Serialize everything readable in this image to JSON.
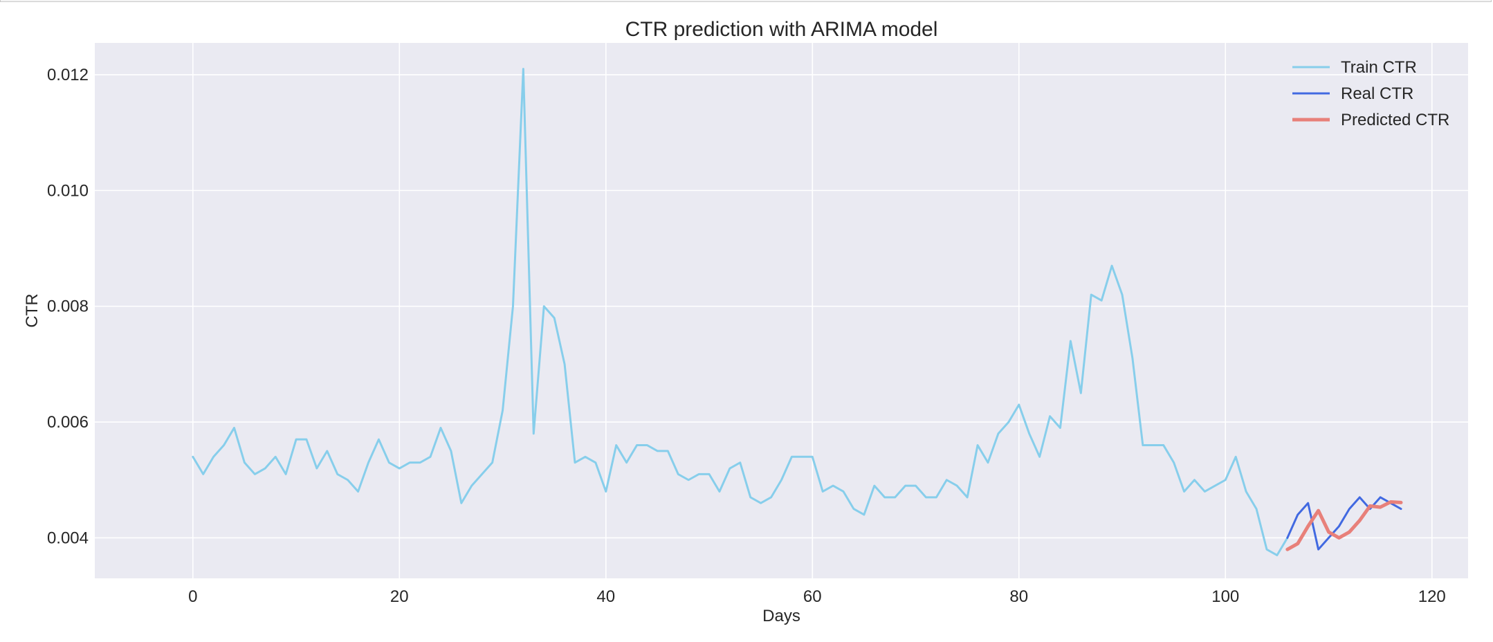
{
  "chart_data": {
    "type": "line",
    "title": "CTR prediction with ARIMA model",
    "xlabel": "Days",
    "ylabel": "CTR",
    "xlim": [
      -9.5,
      123.5
    ],
    "ylim": [
      0.0033,
      0.01255
    ],
    "xticks": [
      0,
      20,
      40,
      60,
      80,
      100,
      120
    ],
    "xtick_labels": [
      "0",
      "20",
      "40",
      "60",
      "80",
      "100",
      "120"
    ],
    "yticks": [
      0.004,
      0.006,
      0.008,
      0.01,
      0.012
    ],
    "ytick_labels": [
      "0.004",
      "0.006",
      "0.008",
      "0.010",
      "0.012"
    ],
    "grid": true,
    "legend_position": "top-right",
    "series": [
      {
        "name": "Train CTR",
        "color": "#87CEEB",
        "x_start": 0,
        "values": [
          0.0054,
          0.0051,
          0.0054,
          0.0056,
          0.0059,
          0.0053,
          0.0051,
          0.0052,
          0.0054,
          0.0051,
          0.0057,
          0.0057,
          0.0052,
          0.0055,
          0.0051,
          0.005,
          0.0048,
          0.0053,
          0.0057,
          0.0053,
          0.0052,
          0.0053,
          0.0053,
          0.0054,
          0.0059,
          0.0055,
          0.0046,
          0.0049,
          0.0051,
          0.0053,
          0.0062,
          0.008,
          0.0121,
          0.0058,
          0.008,
          0.0078,
          0.007,
          0.0053,
          0.0054,
          0.0053,
          0.0048,
          0.0056,
          0.0053,
          0.0056,
          0.0056,
          0.0055,
          0.0055,
          0.0051,
          0.005,
          0.0051,
          0.0051,
          0.0048,
          0.0052,
          0.0053,
          0.0047,
          0.0046,
          0.0047,
          0.005,
          0.0054,
          0.0054,
          0.0054,
          0.0048,
          0.0049,
          0.0048,
          0.0045,
          0.0044,
          0.0049,
          0.0047,
          0.0047,
          0.0049,
          0.0049,
          0.0047,
          0.0047,
          0.005,
          0.0049,
          0.0047,
          0.0056,
          0.0053,
          0.0058,
          0.006,
          0.0063,
          0.0058,
          0.0054,
          0.0061,
          0.0059,
          0.0074,
          0.0065,
          0.0082,
          0.0081,
          0.0087,
          0.0082,
          0.0071,
          0.0056,
          0.0056,
          0.0056,
          0.0053,
          0.0048,
          0.005,
          0.0048,
          0.0049,
          0.005,
          0.0054,
          0.0048,
          0.0045,
          0.0038,
          0.0037,
          0.004
        ]
      },
      {
        "name": "Real CTR",
        "color": "#4169E1",
        "x_start": 106,
        "values": [
          0.004,
          0.0044,
          0.0046,
          0.0038,
          0.004,
          0.0042,
          0.0045,
          0.0047,
          0.0045,
          0.0047,
          0.0046,
          0.0045
        ]
      },
      {
        "name": "Predicted CTR",
        "color": "#E8807A",
        "x_start": 106,
        "values": [
          0.0038,
          0.0039,
          0.0042,
          0.00447,
          0.0041,
          0.004,
          0.0041,
          0.0043,
          0.00455,
          0.00453,
          0.00462,
          0.00461
        ]
      }
    ]
  }
}
